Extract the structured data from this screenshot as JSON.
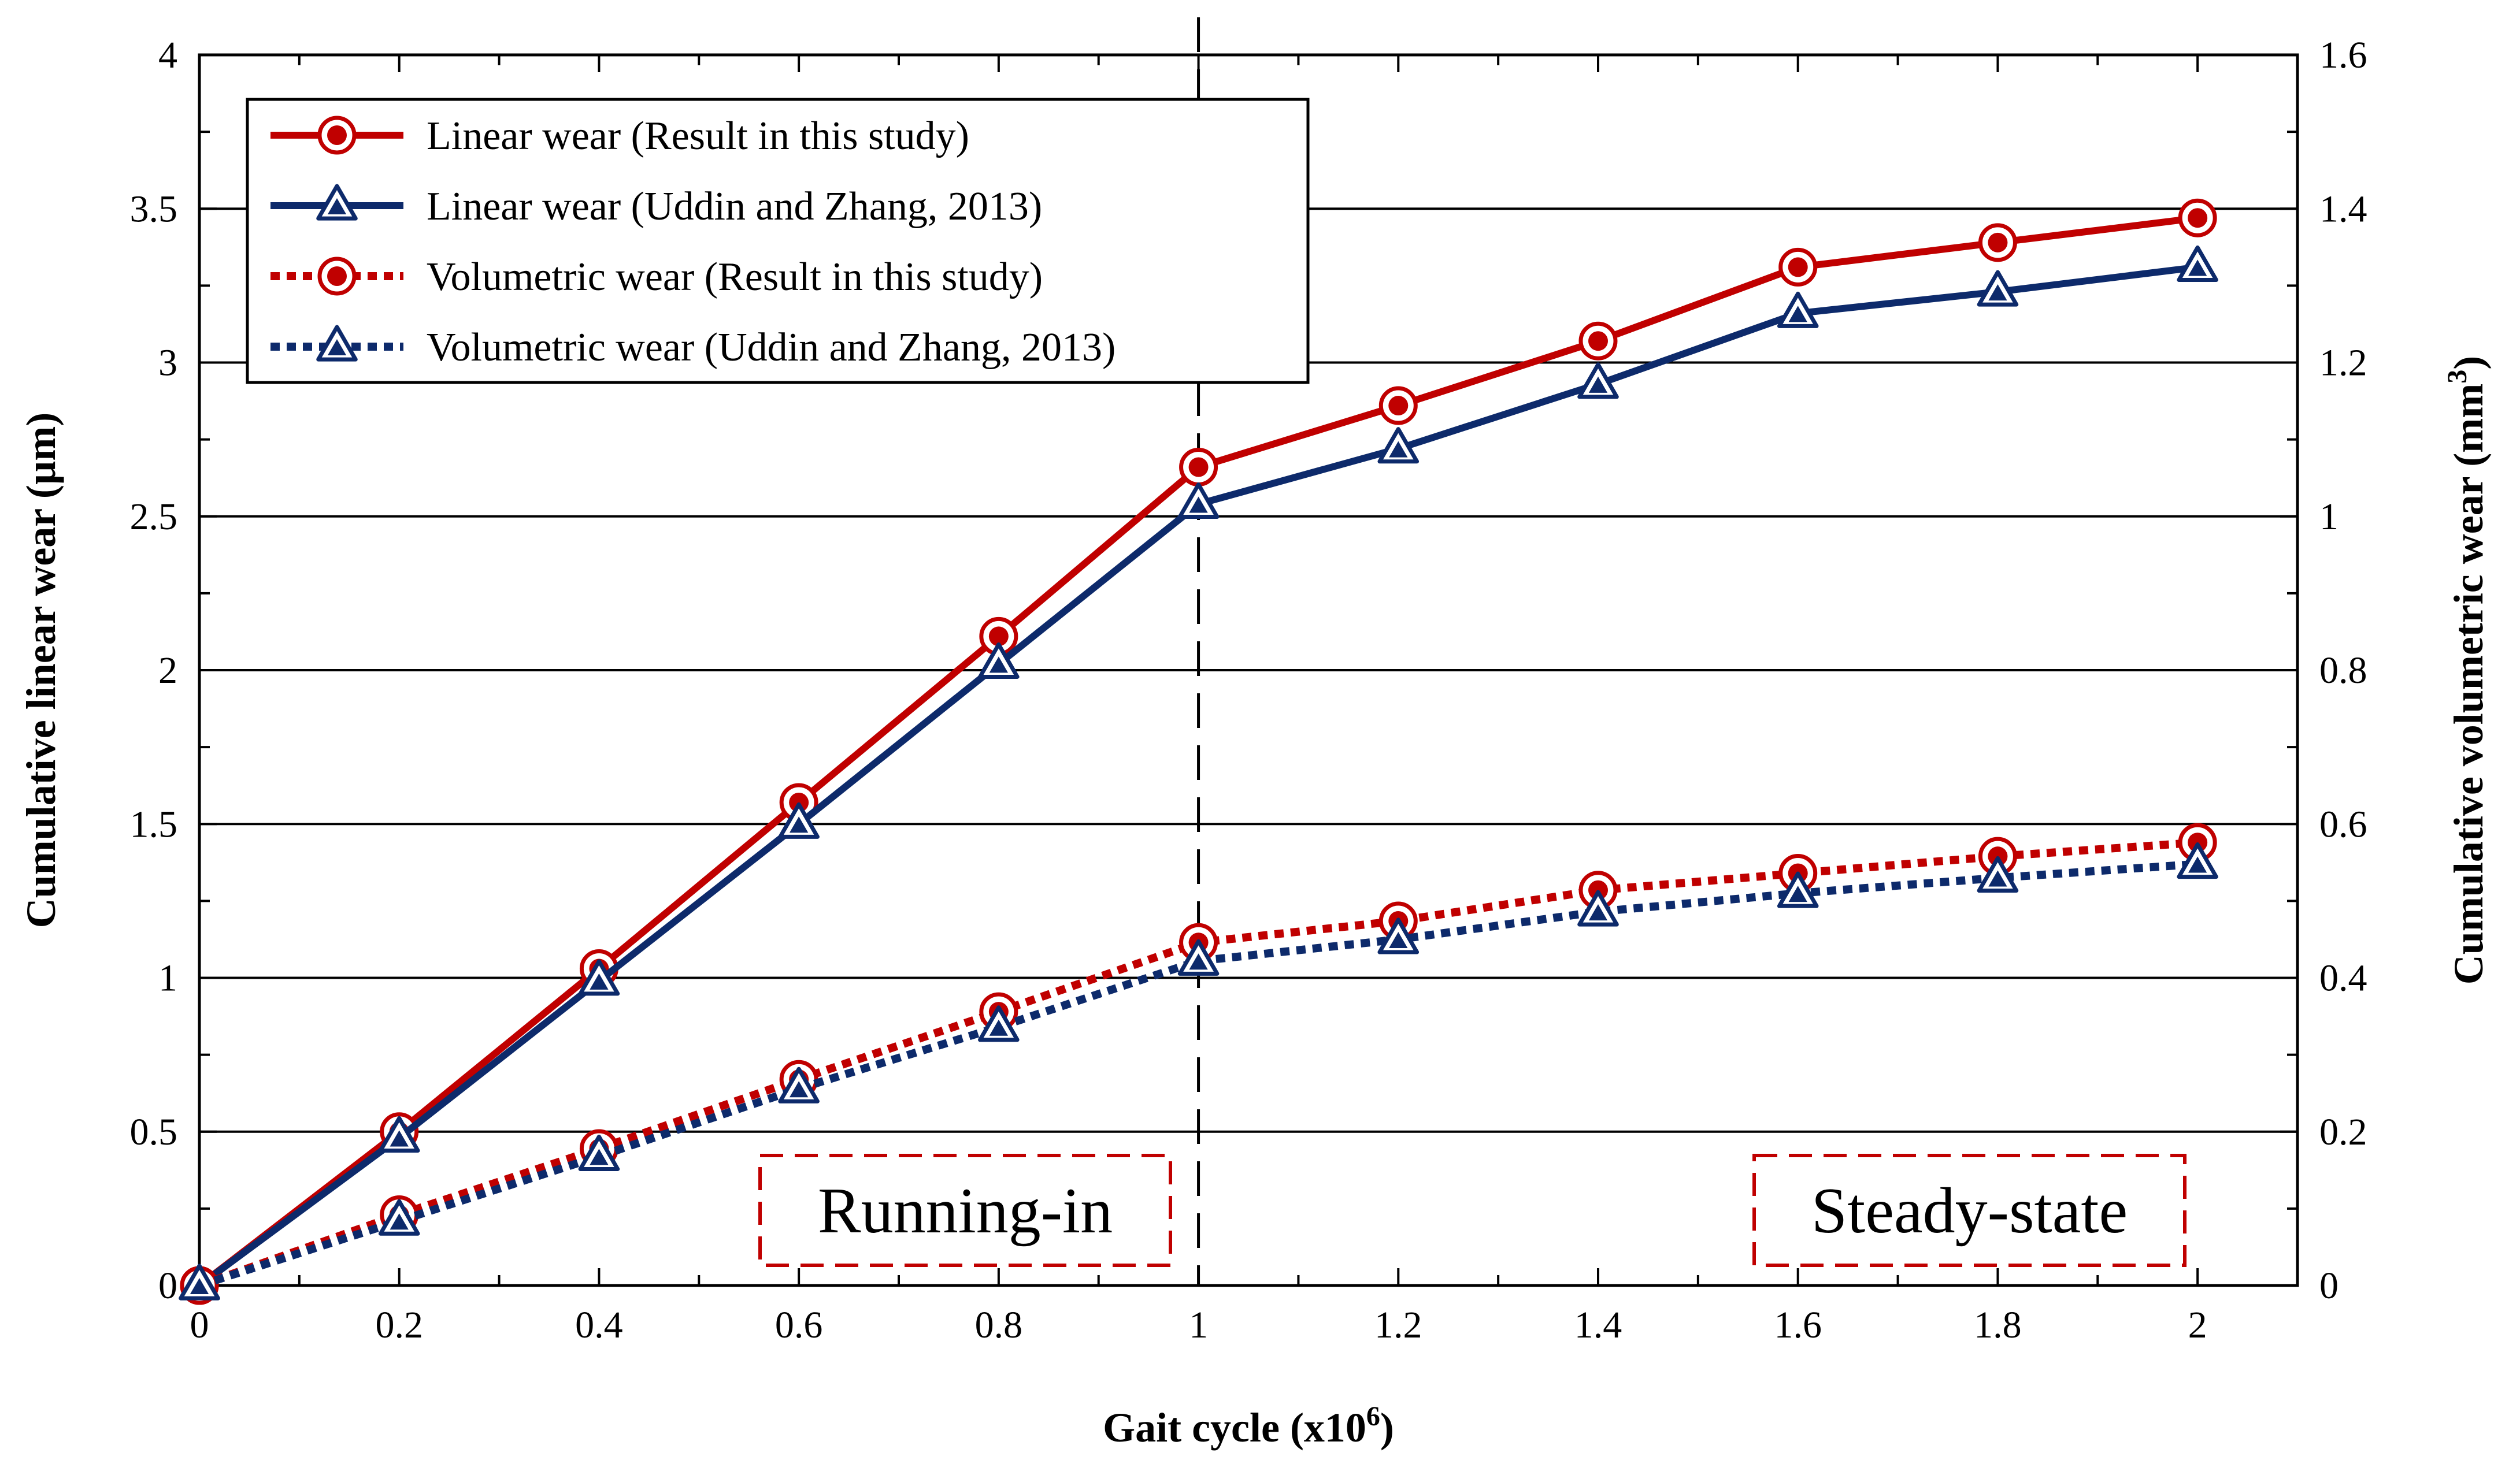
{
  "chart_data": {
    "type": "line",
    "xlabel": "Gait cycle (x10",
    "xlabel_sup": "6",
    "xlabel_tail": ")",
    "ylabel": "Cumulative linear wear (µm)",
    "y2label": "Cumulative volumetric wear (mm",
    "y2label_sup": "3",
    "y2label_tail": ")",
    "x_ticks": [
      "0",
      "0.2",
      "0.4",
      "0.6",
      "0.8",
      "1",
      "1.2",
      "1.4",
      "1.6",
      "1.8",
      "2"
    ],
    "y_ticks": [
      "0",
      "0.5",
      "1",
      "1.5",
      "2",
      "2.5",
      "3",
      "3.5",
      "4"
    ],
    "y2_ticks": [
      "0",
      "0.2",
      "0.4",
      "0.6",
      "0.8",
      "1",
      "1.2",
      "1.4",
      "1.6"
    ],
    "xlim": [
      0,
      2.1
    ],
    "ylim": [
      0,
      4
    ],
    "y2lim": [
      0,
      1.6
    ],
    "grid": "horizontal",
    "legend_position": "top-left",
    "x": [
      0,
      0.2,
      0.4,
      0.6,
      0.8,
      1.0,
      1.2,
      1.4,
      1.6,
      1.8,
      2.0
    ],
    "series": [
      {
        "name": "Linear wear (Result in this study)",
        "axis": "left",
        "marker": "circle",
        "dash": "solid",
        "color": "#c00000",
        "values": [
          0,
          0.5,
          1.03,
          1.57,
          2.11,
          2.66,
          2.86,
          3.07,
          3.31,
          3.39,
          3.47
        ]
      },
      {
        "name": "Linear wear (Uddin and Zhang, 2013)",
        "axis": "left",
        "marker": "triangle",
        "dash": "solid",
        "color": "#0d2a6b",
        "values": [
          0,
          0.48,
          0.99,
          1.5,
          2.02,
          2.54,
          2.72,
          2.93,
          3.16,
          3.23,
          3.31
        ]
      },
      {
        "name": "Volumetric wear (Result in this study)",
        "axis": "right",
        "marker": "circle",
        "dash": "dotted",
        "color": "#c00000",
        "values": [
          0,
          0.092,
          0.178,
          0.268,
          0.356,
          0.446,
          0.474,
          0.514,
          0.536,
          0.558,
          0.576
        ]
      },
      {
        "name": "Volumetric wear (Uddin and Zhang, 2013)",
        "axis": "right",
        "marker": "triangle",
        "dash": "dotted",
        "color": "#0d2a6b",
        "values": [
          0,
          0.084,
          0.168,
          0.256,
          0.336,
          0.422,
          0.45,
          0.486,
          0.51,
          0.53,
          0.548
        ]
      }
    ],
    "annotations": [
      {
        "text": "Running-in"
      },
      {
        "text": "Steady-state"
      }
    ],
    "divider_x": 1.0
  }
}
